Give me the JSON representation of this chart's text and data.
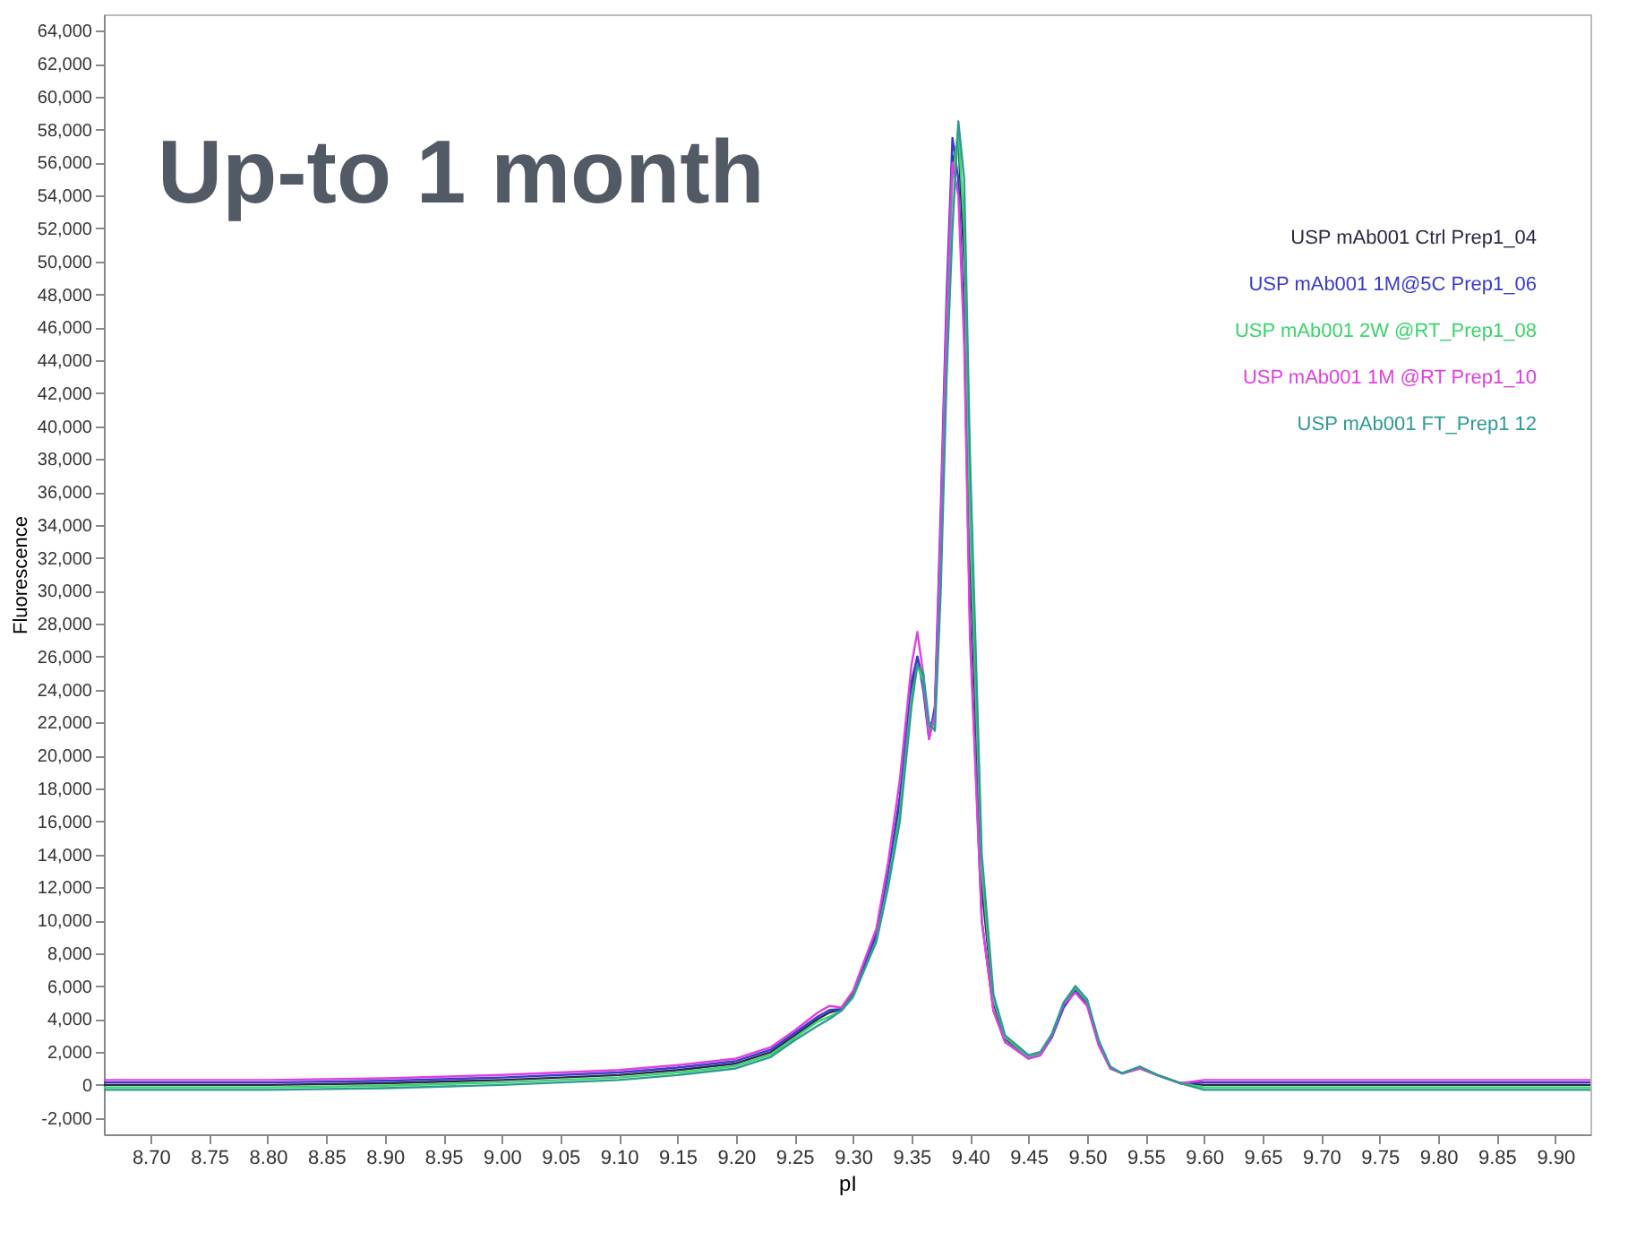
{
  "chart_data": {
    "type": "line",
    "title": "Up-to 1 month",
    "xlabel": "pI",
    "ylabel": "Fluorescence",
    "xlim": [
      8.66,
      9.93
    ],
    "xticks": [
      {
        "value": 8.7,
        "label": "8.70"
      },
      8.75,
      {
        "value": 8.8,
        "label": "8.80"
      },
      8.85,
      {
        "value": 8.9,
        "label": "8.90"
      },
      8.95,
      {
        "value": 9.0,
        "label": "9.00"
      },
      9.05,
      {
        "value": 9.1,
        "label": "9.10"
      },
      9.15,
      {
        "value": 9.2,
        "label": "9.20"
      },
      9.25,
      {
        "value": 9.3,
        "label": "9.30"
      },
      9.35,
      {
        "value": 9.4,
        "label": "9.40"
      },
      9.45,
      {
        "value": 9.5,
        "label": "9.50"
      },
      9.55,
      {
        "value": 9.6,
        "label": "9.60"
      },
      9.65,
      {
        "value": 9.7,
        "label": "9.70"
      },
      9.75,
      {
        "value": 9.8,
        "label": "9.80"
      },
      9.85,
      {
        "value": 9.9,
        "label": "9.90"
      }
    ],
    "ylim": [
      -3000,
      65000
    ],
    "yticks": [
      {
        "value": -2000,
        "label": "-2,000"
      },
      0,
      {
        "value": 2000,
        "label": "2,000"
      },
      {
        "value": 4000,
        "label": "4,000"
      },
      {
        "value": 6000,
        "label": "6,000"
      },
      {
        "value": 8000,
        "label": "8,000"
      },
      {
        "value": 10000,
        "label": "10,000"
      },
      {
        "value": 12000,
        "label": "12,000"
      },
      {
        "value": 14000,
        "label": "14,000"
      },
      {
        "value": 16000,
        "label": "16,000"
      },
      {
        "value": 18000,
        "label": "18,000"
      },
      {
        "value": 20000,
        "label": "20,000"
      },
      {
        "value": 22000,
        "label": "22,000"
      },
      {
        "value": 24000,
        "label": "24,000"
      },
      {
        "value": 26000,
        "label": "26,000"
      },
      {
        "value": 28000,
        "label": "28,000"
      },
      {
        "value": 30000,
        "label": "30,000"
      },
      {
        "value": 32000,
        "label": "32,000"
      },
      {
        "value": 34000,
        "label": "34,000"
      },
      {
        "value": 36000,
        "label": "36,000"
      },
      {
        "value": 38000,
        "label": "38,000"
      },
      {
        "value": 40000,
        "label": "40,000"
      },
      {
        "value": 42000,
        "label": "42,000"
      },
      {
        "value": 44000,
        "label": "44,000"
      },
      {
        "value": 46000,
        "label": "46,000"
      },
      {
        "value": 48000,
        "label": "48,000"
      },
      {
        "value": 50000,
        "label": "50,000"
      },
      {
        "value": 52000,
        "label": "52,000"
      },
      {
        "value": 54000,
        "label": "54,000"
      },
      {
        "value": 56000,
        "label": "56,000"
      },
      {
        "value": 58000,
        "label": "58,000"
      },
      {
        "value": 60000,
        "label": "60,000"
      },
      {
        "value": 62000,
        "label": "62,000"
      },
      {
        "value": 64000,
        "label": "64,000"
      }
    ],
    "grid": false,
    "legend": "top right",
    "marker": "none",
    "line_style": "solid",
    "x": [
      8.66,
      8.8,
      8.9,
      9.0,
      9.1,
      9.15,
      9.2,
      9.23,
      9.25,
      9.27,
      9.28,
      9.29,
      9.3,
      9.32,
      9.33,
      9.34,
      9.35,
      9.355,
      9.36,
      9.365,
      9.37,
      9.375,
      9.38,
      9.385,
      9.39,
      9.395,
      9.4,
      9.41,
      9.42,
      9.43,
      9.45,
      9.46,
      9.47,
      9.48,
      9.49,
      9.5,
      9.51,
      9.52,
      9.53,
      9.545,
      9.56,
      9.58,
      9.6,
      9.93
    ],
    "series": [
      {
        "name": "USP mAb001 Ctrl Prep1_04",
        "color": "#2a2a48",
        "values": [
          0,
          0,
          100,
          300,
          600,
          900,
          1300,
          2000,
          3000,
          4000,
          4400,
          4600,
          5500,
          9000,
          12500,
          17000,
          24000,
          26000,
          24500,
          21500,
          22500,
          33000,
          46000,
          56000,
          57500,
          50000,
          32000,
          12000,
          5000,
          2800,
          1700,
          1900,
          3000,
          4800,
          5800,
          5000,
          2500,
          1000,
          700,
          1100,
          600,
          100,
          0,
          0
        ]
      },
      {
        "name": "USP mAb001 1M@5C Prep1_06",
        "color": "#3a3ad0",
        "values": [
          150,
          150,
          250,
          450,
          750,
          1050,
          1450,
          2150,
          3150,
          4150,
          4550,
          4600,
          5500,
          9200,
          12800,
          17500,
          24500,
          26000,
          24000,
          21000,
          23000,
          35000,
          48000,
          57500,
          55000,
          46000,
          28000,
          10000,
          4500,
          2600,
          1600,
          1800,
          2900,
          4700,
          5700,
          4900,
          2400,
          1000,
          700,
          1000,
          600,
          100,
          150,
          150
        ]
      },
      {
        "name": "USP mAb001 2W @RT_Prep1_08",
        "color": "#3ad46a",
        "values": [
          -150,
          -150,
          -50,
          150,
          450,
          750,
          1150,
          1850,
          2850,
          3850,
          4150,
          4500,
          5300,
          8800,
          12200,
          16500,
          23500,
          25500,
          24500,
          21500,
          22000,
          32000,
          45000,
          55000,
          58000,
          52000,
          34000,
          13000,
          5200,
          2900,
          1700,
          1900,
          3100,
          5000,
          5900,
          5100,
          2600,
          1000,
          700,
          1100,
          600,
          100,
          -150,
          -150
        ]
      },
      {
        "name": "USP mAb001 1M @RT Prep1_10",
        "color": "#e040e0",
        "values": [
          300,
          300,
          400,
          600,
          900,
          1200,
          1600,
          2300,
          3300,
          4400,
          4800,
          4700,
          5700,
          9500,
          13500,
          18500,
          25500,
          27500,
          25000,
          21000,
          22500,
          34000,
          47000,
          56000,
          54000,
          45000,
          27000,
          10000,
          4500,
          2600,
          1600,
          1800,
          3000,
          4900,
          5600,
          4800,
          2400,
          1000,
          700,
          1000,
          600,
          100,
          300,
          300
        ]
      },
      {
        "name": "USP mAb001 FT_Prep1 12",
        "color": "#2e9a94",
        "values": [
          -300,
          -300,
          -200,
          0,
          300,
          600,
          1000,
          1700,
          2700,
          3600,
          4000,
          4500,
          5400,
          8700,
          12000,
          16000,
          23000,
          25500,
          25000,
          22000,
          21500,
          30000,
          43000,
          52000,
          58500,
          55000,
          38000,
          14000,
          5500,
          3000,
          1800,
          2000,
          3100,
          5000,
          6000,
          5200,
          2700,
          1100,
          700,
          1100,
          600,
          100,
          -300,
          -300
        ]
      }
    ]
  }
}
